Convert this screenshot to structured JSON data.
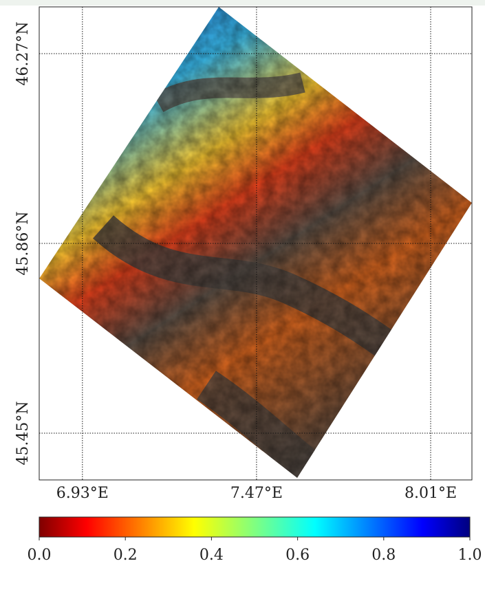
{
  "map": {
    "xlim": [
      6.796,
      8.138
    ],
    "ylim": [
      45.349,
      46.371
    ],
    "lon_ticks": [
      {
        "value": 6.93,
        "label": "6.93°E"
      },
      {
        "value": 7.47,
        "label": "7.47°E"
      },
      {
        "value": 8.01,
        "label": "8.01°E"
      }
    ],
    "lat_ticks": [
      {
        "value": 46.27,
        "label": "46.27°N"
      },
      {
        "value": 45.86,
        "label": "45.86°N"
      },
      {
        "value": 45.45,
        "label": "45.45°N"
      }
    ]
  },
  "colorbar": {
    "lim": [
      0,
      1
    ],
    "ticks": [
      {
        "value": 0,
        "label": "0.0"
      },
      {
        "value": 0.2,
        "label": "0.2"
      },
      {
        "value": 0.4,
        "label": "0.4"
      },
      {
        "value": 0.6,
        "label": "0.6"
      },
      {
        "value": 0.8,
        "label": "0.8"
      },
      {
        "value": 1,
        "label": "1.0"
      }
    ]
  }
}
